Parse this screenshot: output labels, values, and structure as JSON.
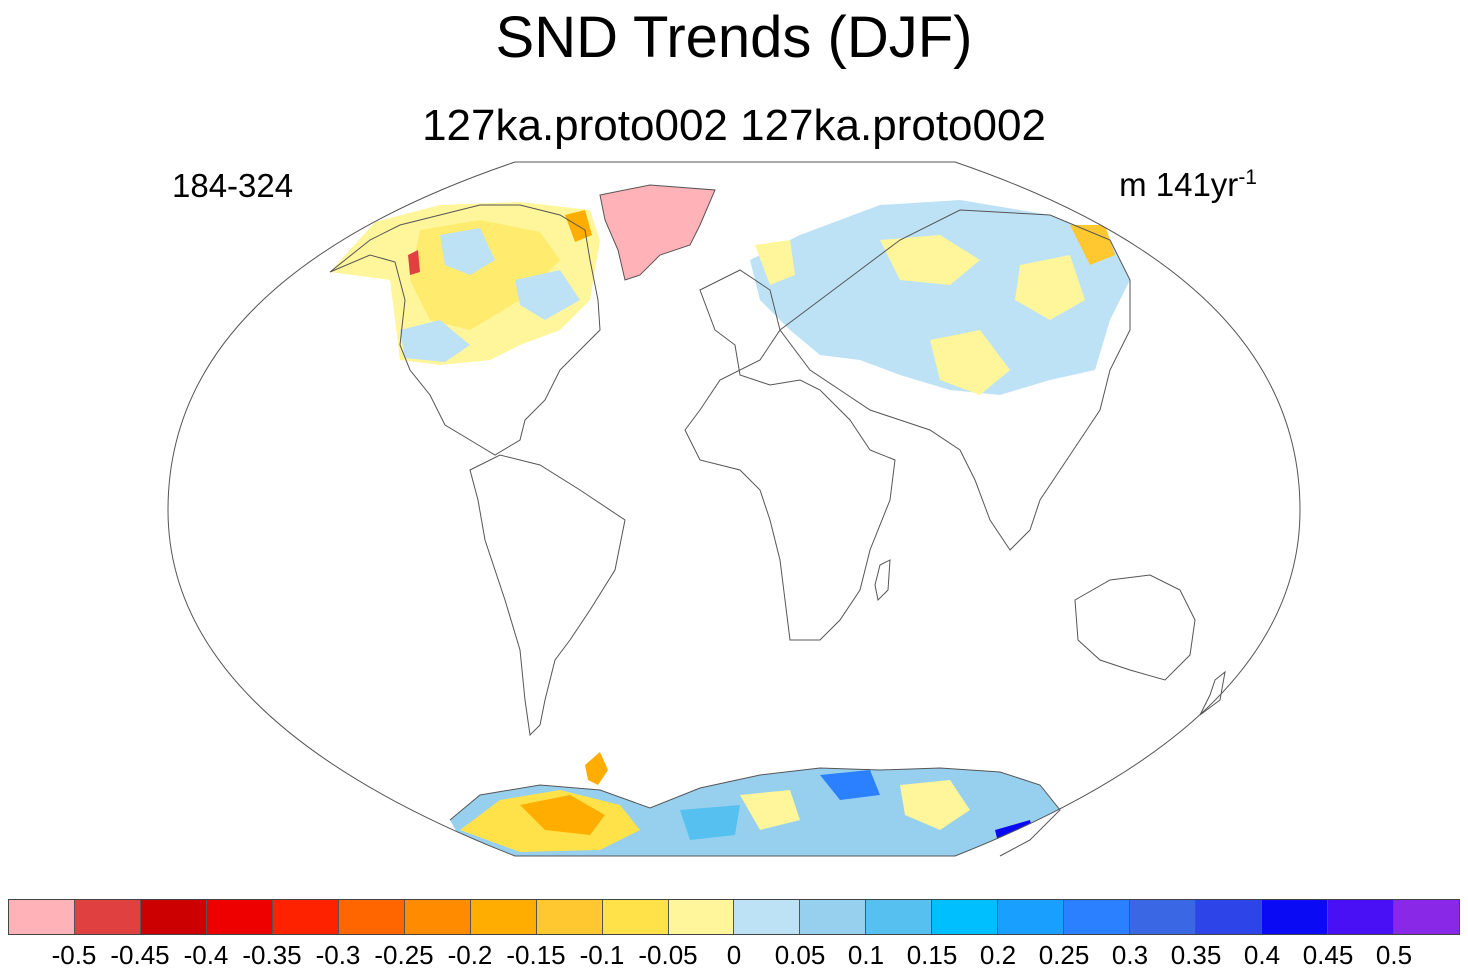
{
  "title": "SND Trends (DJF)",
  "subtitle": "127ka.proto002  127ka.proto002",
  "period": "184-324",
  "units": {
    "base": "m 141yr",
    "exponent": "-1"
  },
  "colorbar": {
    "colors": [
      "#ffb3b8",
      "#e04040",
      "#cc0000",
      "#ee0000",
      "#ff2200",
      "#ff6600",
      "#ff8c00",
      "#ffad00",
      "#ffc830",
      "#ffe24a",
      "#fff59a",
      "#bde2f5",
      "#97d0ee",
      "#56c1f0",
      "#00bfff",
      "#19a0ff",
      "#2a80ff",
      "#3a68e5",
      "#2d45e8",
      "#0a0af5",
      "#4a10f5",
      "#8a28e8"
    ],
    "labels": [
      "-0.5",
      "-0.45",
      "-0.4",
      "-0.35",
      "-0.3",
      "-0.25",
      "-0.2",
      "-0.15",
      "-0.1",
      "-0.05",
      "0",
      "0.05",
      "0.1",
      "0.15",
      "0.2",
      "0.25",
      "0.3",
      "0.35",
      "0.4",
      "0.45",
      "0.5"
    ]
  }
}
